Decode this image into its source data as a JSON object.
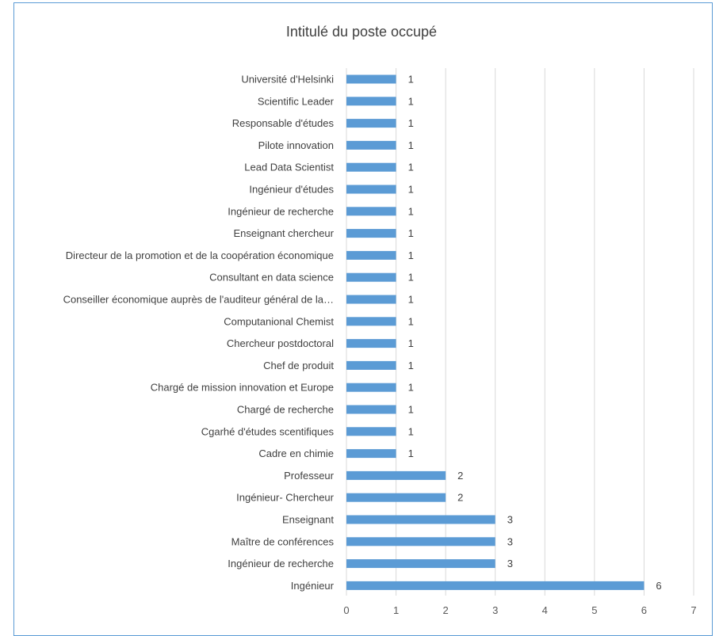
{
  "colors": {
    "bar": "#5b9bd5",
    "grid": "#d9d9d9",
    "border": "#5b9bd5",
    "text": "#404040"
  },
  "chart_data": {
    "type": "bar",
    "orientation": "horizontal",
    "title": "Intitulé du poste occupé",
    "xlabel": "",
    "ylabel": "",
    "xlim": [
      0,
      7
    ],
    "xticks": [
      "0",
      "1",
      "2",
      "3",
      "4",
      "5",
      "6",
      "7"
    ],
    "grid": true,
    "legend": "none",
    "data_labels": true,
    "categories": [
      "Université d'Helsinki",
      "Scientific Leader",
      "Responsable d'études",
      "Pilote innovation",
      "Lead Data Scientist",
      "Ingénieur d'études",
      "Ingénieur de recherche",
      "Enseignant chercheur",
      "Directeur de la promotion et de la coopération économique",
      "Consultant en data science",
      "Conseiller économique auprès de l'auditeur général de la…",
      "Computanional Chemist",
      "Chercheur postdoctoral",
      "Chef de produit",
      "Chargé de mission innovation et Europe",
      "Chargé de recherche",
      "Cgarhé d'études scentifiques",
      "Cadre en chimie",
      "Professeur",
      "Ingénieur- Chercheur",
      "Enseignant",
      "Maître de conférences",
      "Ingénieur de recherche",
      "Ingénieur"
    ],
    "values": [
      1,
      1,
      1,
      1,
      1,
      1,
      1,
      1,
      1,
      1,
      1,
      1,
      1,
      1,
      1,
      1,
      1,
      1,
      2,
      2,
      3,
      3,
      3,
      6
    ]
  }
}
